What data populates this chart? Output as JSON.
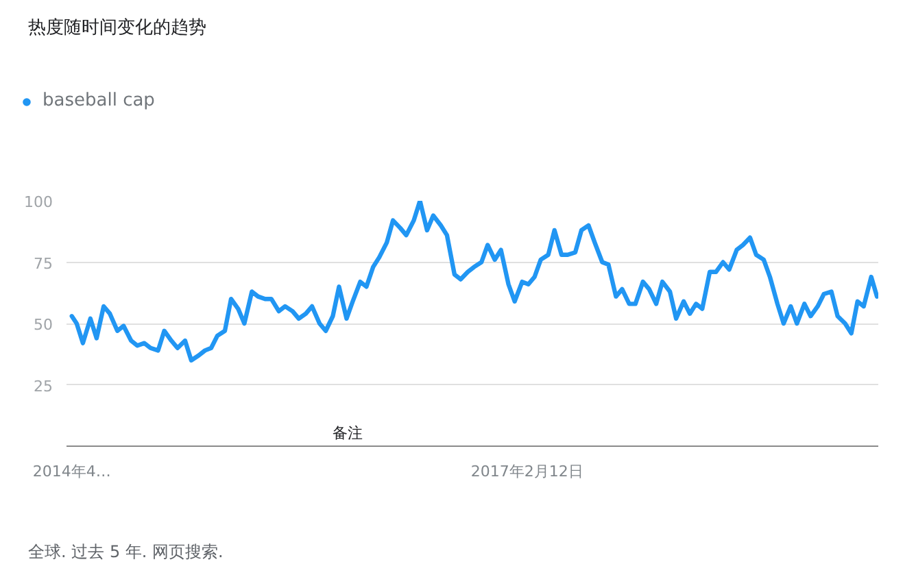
{
  "chart_data": {
    "type": "line",
    "title": "热度随时间变化的趋势",
    "legend": "top left",
    "grid": "y",
    "xlim": [
      "2014-04-08",
      "2019-04-17"
    ],
    "xticks": [
      {
        "value": "2014-04-20",
        "label": "2014年4…"
      },
      {
        "value": "2017-02-12",
        "label": "2017年2月12日"
      }
    ],
    "ylim": [
      0,
      100
    ],
    "yticks": [
      25,
      50,
      75,
      100
    ],
    "annotations": [
      "备注",
      "全球. 过去 5 年. 网页搜索."
    ],
    "series": [
      {
        "name": "baseball cap",
        "color": "#2196f3",
        "x": [
          "2014-04-20",
          "2014-05-01",
          "2014-05-15",
          "2014-06-01",
          "2014-06-15",
          "2014-07-01",
          "2014-07-15",
          "2014-08-01",
          "2014-08-15",
          "2014-09-01",
          "2014-09-15",
          "2014-10-01",
          "2014-10-15",
          "2014-11-01",
          "2014-11-15",
          "2014-12-01",
          "2014-12-15",
          "2015-01-01",
          "2015-01-15",
          "2015-02-01",
          "2015-02-15",
          "2015-03-01",
          "2015-03-15",
          "2015-04-01",
          "2015-04-15",
          "2015-05-01",
          "2015-05-15",
          "2015-06-01",
          "2015-06-15",
          "2015-07-01",
          "2015-07-15",
          "2015-08-01",
          "2015-08-15",
          "2015-09-01",
          "2015-09-15",
          "2015-10-01",
          "2015-10-15",
          "2015-11-01",
          "2015-11-15",
          "2015-12-01",
          "2015-12-15",
          "2016-01-01",
          "2016-01-15",
          "2016-02-01",
          "2016-02-15",
          "2016-03-01",
          "2016-03-15",
          "2016-04-01",
          "2016-04-15",
          "2016-05-01",
          "2016-05-15",
          "2016-06-01",
          "2016-06-15",
          "2016-07-01",
          "2016-07-15",
          "2016-08-01",
          "2016-08-15",
          "2016-09-01",
          "2016-09-15",
          "2016-10-01",
          "2016-10-15",
          "2016-11-01",
          "2016-11-15",
          "2016-12-01",
          "2016-12-15",
          "2017-01-01",
          "2017-01-15",
          "2017-02-01",
          "2017-02-15",
          "2017-03-01",
          "2017-03-15",
          "2017-04-01",
          "2017-04-15",
          "2017-05-01",
          "2017-05-15",
          "2017-06-01",
          "2017-06-15",
          "2017-07-01",
          "2017-07-15",
          "2017-08-01",
          "2017-08-15",
          "2017-09-01",
          "2017-09-15",
          "2017-10-01",
          "2017-10-15",
          "2017-11-01",
          "2017-11-15",
          "2017-12-01",
          "2017-12-15",
          "2018-01-01",
          "2018-01-15",
          "2018-02-01",
          "2018-02-15",
          "2018-03-01",
          "2018-03-15",
          "2018-04-01",
          "2018-04-15",
          "2018-05-01",
          "2018-05-15",
          "2018-06-01",
          "2018-06-15",
          "2018-07-01",
          "2018-07-15",
          "2018-08-01",
          "2018-08-15",
          "2018-09-01",
          "2018-09-15",
          "2018-10-01",
          "2018-10-15",
          "2018-11-01",
          "2018-11-15",
          "2018-12-01",
          "2018-12-15",
          "2019-01-01",
          "2019-01-15",
          "2019-02-01",
          "2019-02-15",
          "2019-03-01",
          "2019-03-15",
          "2019-04-01",
          "2019-04-14"
        ],
        "values": [
          53,
          50,
          42,
          52,
          44,
          57,
          54,
          47,
          49,
          43,
          41,
          42,
          40,
          39,
          47,
          43,
          40,
          43,
          35,
          37,
          39,
          40,
          45,
          47,
          60,
          56,
          50,
          63,
          61,
          60,
          60,
          55,
          57,
          55,
          52,
          54,
          57,
          50,
          47,
          53,
          65,
          52,
          59,
          67,
          65,
          73,
          77,
          83,
          92,
          89,
          86,
          92,
          100,
          88,
          94,
          90,
          86,
          70,
          68,
          71,
          73,
          75,
          82,
          76,
          80,
          66,
          59,
          67,
          66,
          69,
          76,
          78,
          88,
          78,
          78,
          79,
          88,
          90,
          83,
          75,
          74,
          61,
          64,
          58,
          58,
          67,
          64,
          58,
          67,
          63,
          52,
          59,
          54,
          58,
          56,
          71,
          71,
          75,
          72,
          80,
          82,
          85,
          78,
          76,
          69,
          58,
          50,
          57,
          50,
          58,
          53,
          57,
          62,
          63,
          53,
          50,
          46,
          59,
          57,
          69,
          61
        ]
      }
    ]
  }
}
